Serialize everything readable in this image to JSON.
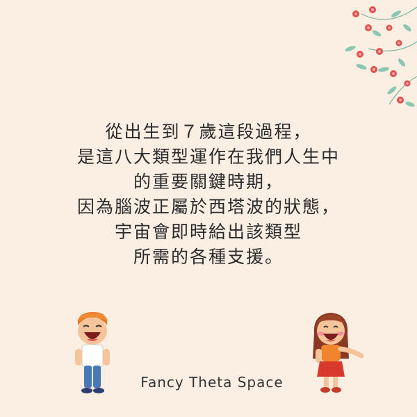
{
  "quote": {
    "lines": [
      "從出生到７歲這段過程，",
      "是這八大類型運作在我們人生中",
      "的重要關鍵時期，",
      "因為腦波正屬於西塔波的狀態，",
      "宇宙會即時給出該類型",
      "所需的各種支援。"
    ]
  },
  "brand": {
    "name": "Fancy Theta Space"
  },
  "colors": {
    "background": "#fbeee2",
    "leaf": "#8cc7b2",
    "flower": "#e0534a",
    "flower_center": "#f2a6b8",
    "text": "#2a2a2a"
  },
  "icons": [
    "floral-branch-icon",
    "laughing-boy-icon",
    "laughing-girl-icon"
  ]
}
